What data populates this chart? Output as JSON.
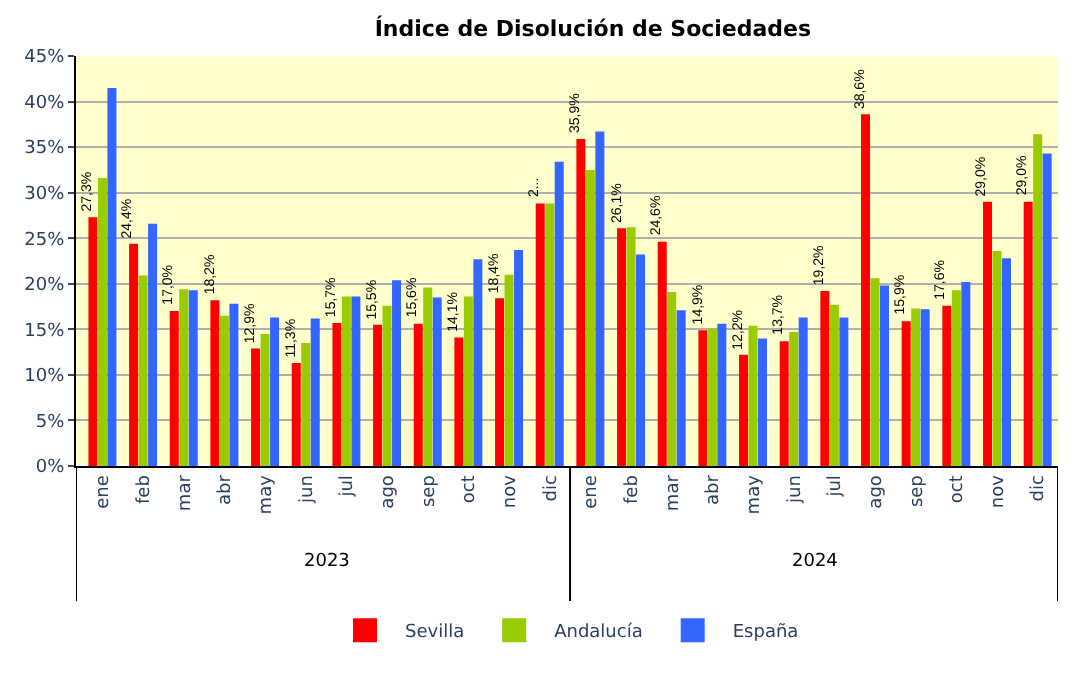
{
  "chart_data": {
    "type": "bar",
    "title": "Índice de Disolución de Sociedades",
    "categories": [
      "ene",
      "feb",
      "mar",
      "abr",
      "may",
      "jun",
      "jul",
      "ago",
      "sep",
      "oct",
      "nov",
      "dic",
      "ene",
      "feb",
      "mar",
      "abr",
      "may",
      "jun",
      "jul",
      "ago",
      "sep",
      "oct",
      "nov",
      "dic"
    ],
    "annotations": [
      "2023",
      "2024"
    ],
    "series": [
      {
        "name": "Sevilla",
        "color": "#ff0000",
        "values": [
          27.3,
          24.4,
          17.0,
          18.2,
          12.9,
          11.3,
          15.7,
          15.5,
          15.6,
          14.1,
          18.4,
          28.8,
          35.9,
          26.1,
          24.6,
          14.9,
          12.2,
          13.7,
          19.2,
          38.6,
          15.9,
          17.6,
          29.0,
          29.0
        ],
        "value_labels": [
          "27,3%",
          "24,4%",
          "17,0%",
          "18,2%",
          "12,9%",
          "11,3%",
          "15,7%",
          "15,5%",
          "15,6%",
          "14,1%",
          "18,4%",
          "2...",
          "35,9%",
          "26,1%",
          "24,6%",
          "14,9%",
          "12,2%",
          "13,7%",
          "19,2%",
          "38,6%",
          "15,9%",
          "17,6%",
          "29,0%",
          "29,0%"
        ]
      },
      {
        "name": "Andalucía",
        "color": "#99cc00",
        "values": [
          31.6,
          20.9,
          19.4,
          16.5,
          14.5,
          13.5,
          18.6,
          17.6,
          19.6,
          18.6,
          21.0,
          28.8,
          32.5,
          26.2,
          19.1,
          15.1,
          15.4,
          14.7,
          17.7,
          20.6,
          17.3,
          19.3,
          23.6,
          36.4
        ]
      },
      {
        "name": "España",
        "color": "#3366ff",
        "values": [
          41.5,
          26.6,
          19.3,
          17.8,
          16.3,
          16.2,
          18.6,
          20.4,
          18.5,
          22.7,
          23.7,
          33.4,
          36.7,
          23.2,
          17.1,
          15.6,
          14.0,
          16.3,
          16.3,
          19.8,
          17.2,
          20.2,
          22.8,
          34.3
        ]
      }
    ],
    "ylim": [
      0,
      45
    ],
    "yticks": [
      {
        "value": 0,
        "label": "0%"
      },
      {
        "value": 5,
        "label": "5%"
      },
      {
        "value": 10,
        "label": "10%"
      },
      {
        "value": 15,
        "label": "15%"
      },
      {
        "value": 20,
        "label": "20%"
      },
      {
        "value": 25,
        "label": "25%"
      },
      {
        "value": 30,
        "label": "30%"
      },
      {
        "value": 35,
        "label": "35%"
      },
      {
        "value": 40,
        "label": "40%"
      },
      {
        "value": 45,
        "label": "45%"
      }
    ],
    "grid": "y",
    "legend": "bottom"
  }
}
